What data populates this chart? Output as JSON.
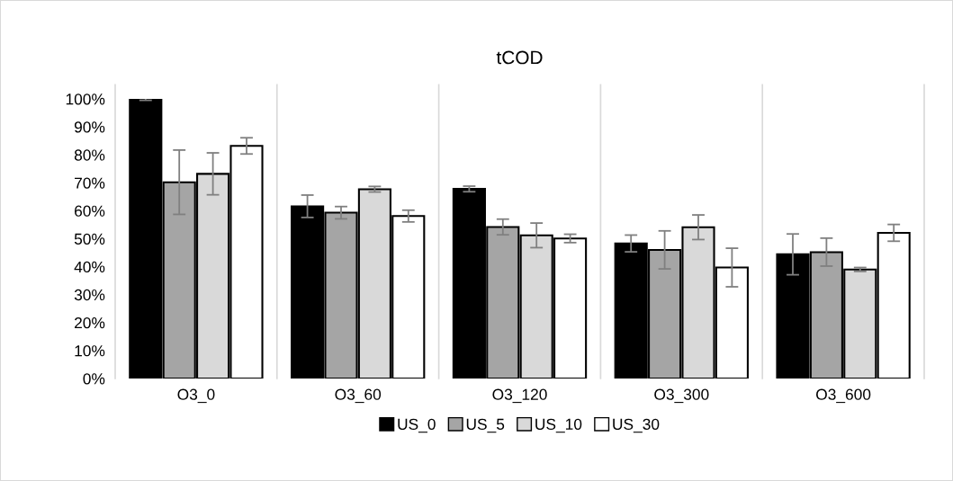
{
  "chart_data": {
    "type": "bar",
    "title": "tCOD",
    "categories": [
      "O3_0",
      "O3_60",
      "O3_120",
      "O3_300",
      "O3_600"
    ],
    "series": [
      {
        "name": "US_0",
        "color": "#000000",
        "values": [
          100,
          61.6,
          67.8,
          48.3,
          44.4
        ],
        "errors": [
          0.5,
          4,
          1,
          3,
          7.3
        ]
      },
      {
        "name": "US_5",
        "color": "#a5a5a5",
        "values": [
          70.2,
          59.3,
          54.2,
          46,
          45.2
        ],
        "errors": [
          11.5,
          2.2,
          2.8,
          6.8,
          5
        ]
      },
      {
        "name": "US_10",
        "color": "#d9d9d9",
        "values": [
          73.2,
          67.7,
          51.2,
          54.1,
          39
        ],
        "errors": [
          7.5,
          1,
          4.4,
          4.4,
          0.7
        ]
      },
      {
        "name": "US_30",
        "color": "#ffffff",
        "values": [
          83.2,
          58.1,
          50.1,
          39.7,
          52.1
        ],
        "errors": [
          2.9,
          2.1,
          1.5,
          6.9,
          3
        ]
      }
    ],
    "ylim": [
      0,
      100
    ],
    "yticks": [
      {
        "value": 0,
        "label": "0%"
      },
      {
        "value": 10,
        "label": "10%"
      },
      {
        "value": 20,
        "label": "20%"
      },
      {
        "value": 30,
        "label": "30%"
      },
      {
        "value": 40,
        "label": "40%"
      },
      {
        "value": 50,
        "label": "50%"
      },
      {
        "value": 60,
        "label": "60%"
      },
      {
        "value": 70,
        "label": "70%"
      },
      {
        "value": 80,
        "label": "80%"
      },
      {
        "value": 90,
        "label": "90%"
      },
      {
        "value": 100,
        "label": "100%"
      }
    ],
    "grid": "x",
    "legend": "bottom"
  }
}
